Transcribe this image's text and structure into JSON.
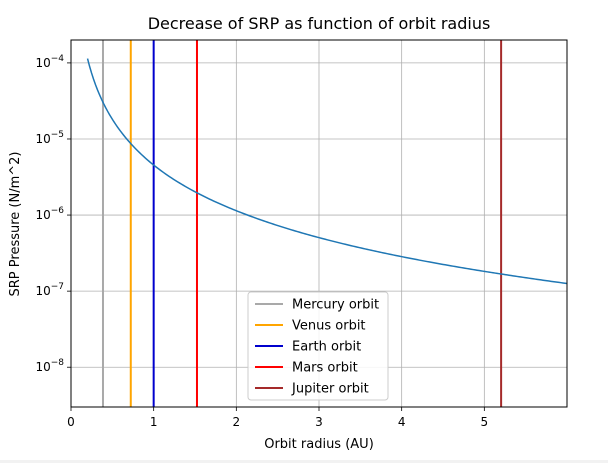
{
  "chart_data": {
    "type": "line",
    "title": "Decrease of SRP as function of orbit radius",
    "xlabel": "Orbit radius (AU)",
    "ylabel": "SRP Pressure (N/m^2)",
    "xlim": [
      0,
      6
    ],
    "ylim": [
      3e-09,
      0.0002
    ],
    "yscale": "log",
    "grid": true,
    "x_ticks": [
      {
        "value": 0,
        "label": "0"
      },
      {
        "value": 1,
        "label": "1"
      },
      {
        "value": 2,
        "label": "2"
      },
      {
        "value": 3,
        "label": "3"
      },
      {
        "value": 4,
        "label": "4"
      },
      {
        "value": 5,
        "label": "5"
      }
    ],
    "y_ticks": [
      {
        "value": 1e-08,
        "base": "10",
        "exp": "−8"
      },
      {
        "value": 1e-07,
        "base": "10",
        "exp": "−7"
      },
      {
        "value": 1e-06,
        "base": "10",
        "exp": "−6"
      },
      {
        "value": 1e-05,
        "base": "10",
        "exp": "−5"
      },
      {
        "value": 0.0001,
        "base": "10",
        "exp": "−4"
      }
    ],
    "curve": {
      "color": "#1f77b4",
      "x_start": 0.2,
      "x_end": 6.0,
      "points": [
        {
          "x": 0.2,
          "y": 0.000114
        },
        {
          "x": 0.387,
          "y": 3.03e-05
        },
        {
          "x": 0.723,
          "y": 8.7e-06
        },
        {
          "x": 1.0,
          "y": 4.54e-06
        },
        {
          "x": 1.524,
          "y": 1.96e-06
        },
        {
          "x": 2.0,
          "y": 1.14e-06
        },
        {
          "x": 3.0,
          "y": 5.05e-07
        },
        {
          "x": 4.0,
          "y": 2.84e-07
        },
        {
          "x": 5.203,
          "y": 1.68e-07
        },
        {
          "x": 6.0,
          "y": 1.26e-07
        }
      ]
    },
    "series": [
      {
        "name": "Mercury orbit",
        "x": 0.387,
        "color": "#a9a9a9"
      },
      {
        "name": "Venus orbit",
        "x": 0.723,
        "color": "#ffa500"
      },
      {
        "name": "Earth orbit",
        "x": 1.0,
        "color": "#0000cd"
      },
      {
        "name": "Mars orbit",
        "x": 1.524,
        "color": "#ff0000"
      },
      {
        "name": "Jupiter orbit",
        "x": 5.203,
        "color": "#a52a2a"
      }
    ],
    "legend_position": "lower-center"
  }
}
